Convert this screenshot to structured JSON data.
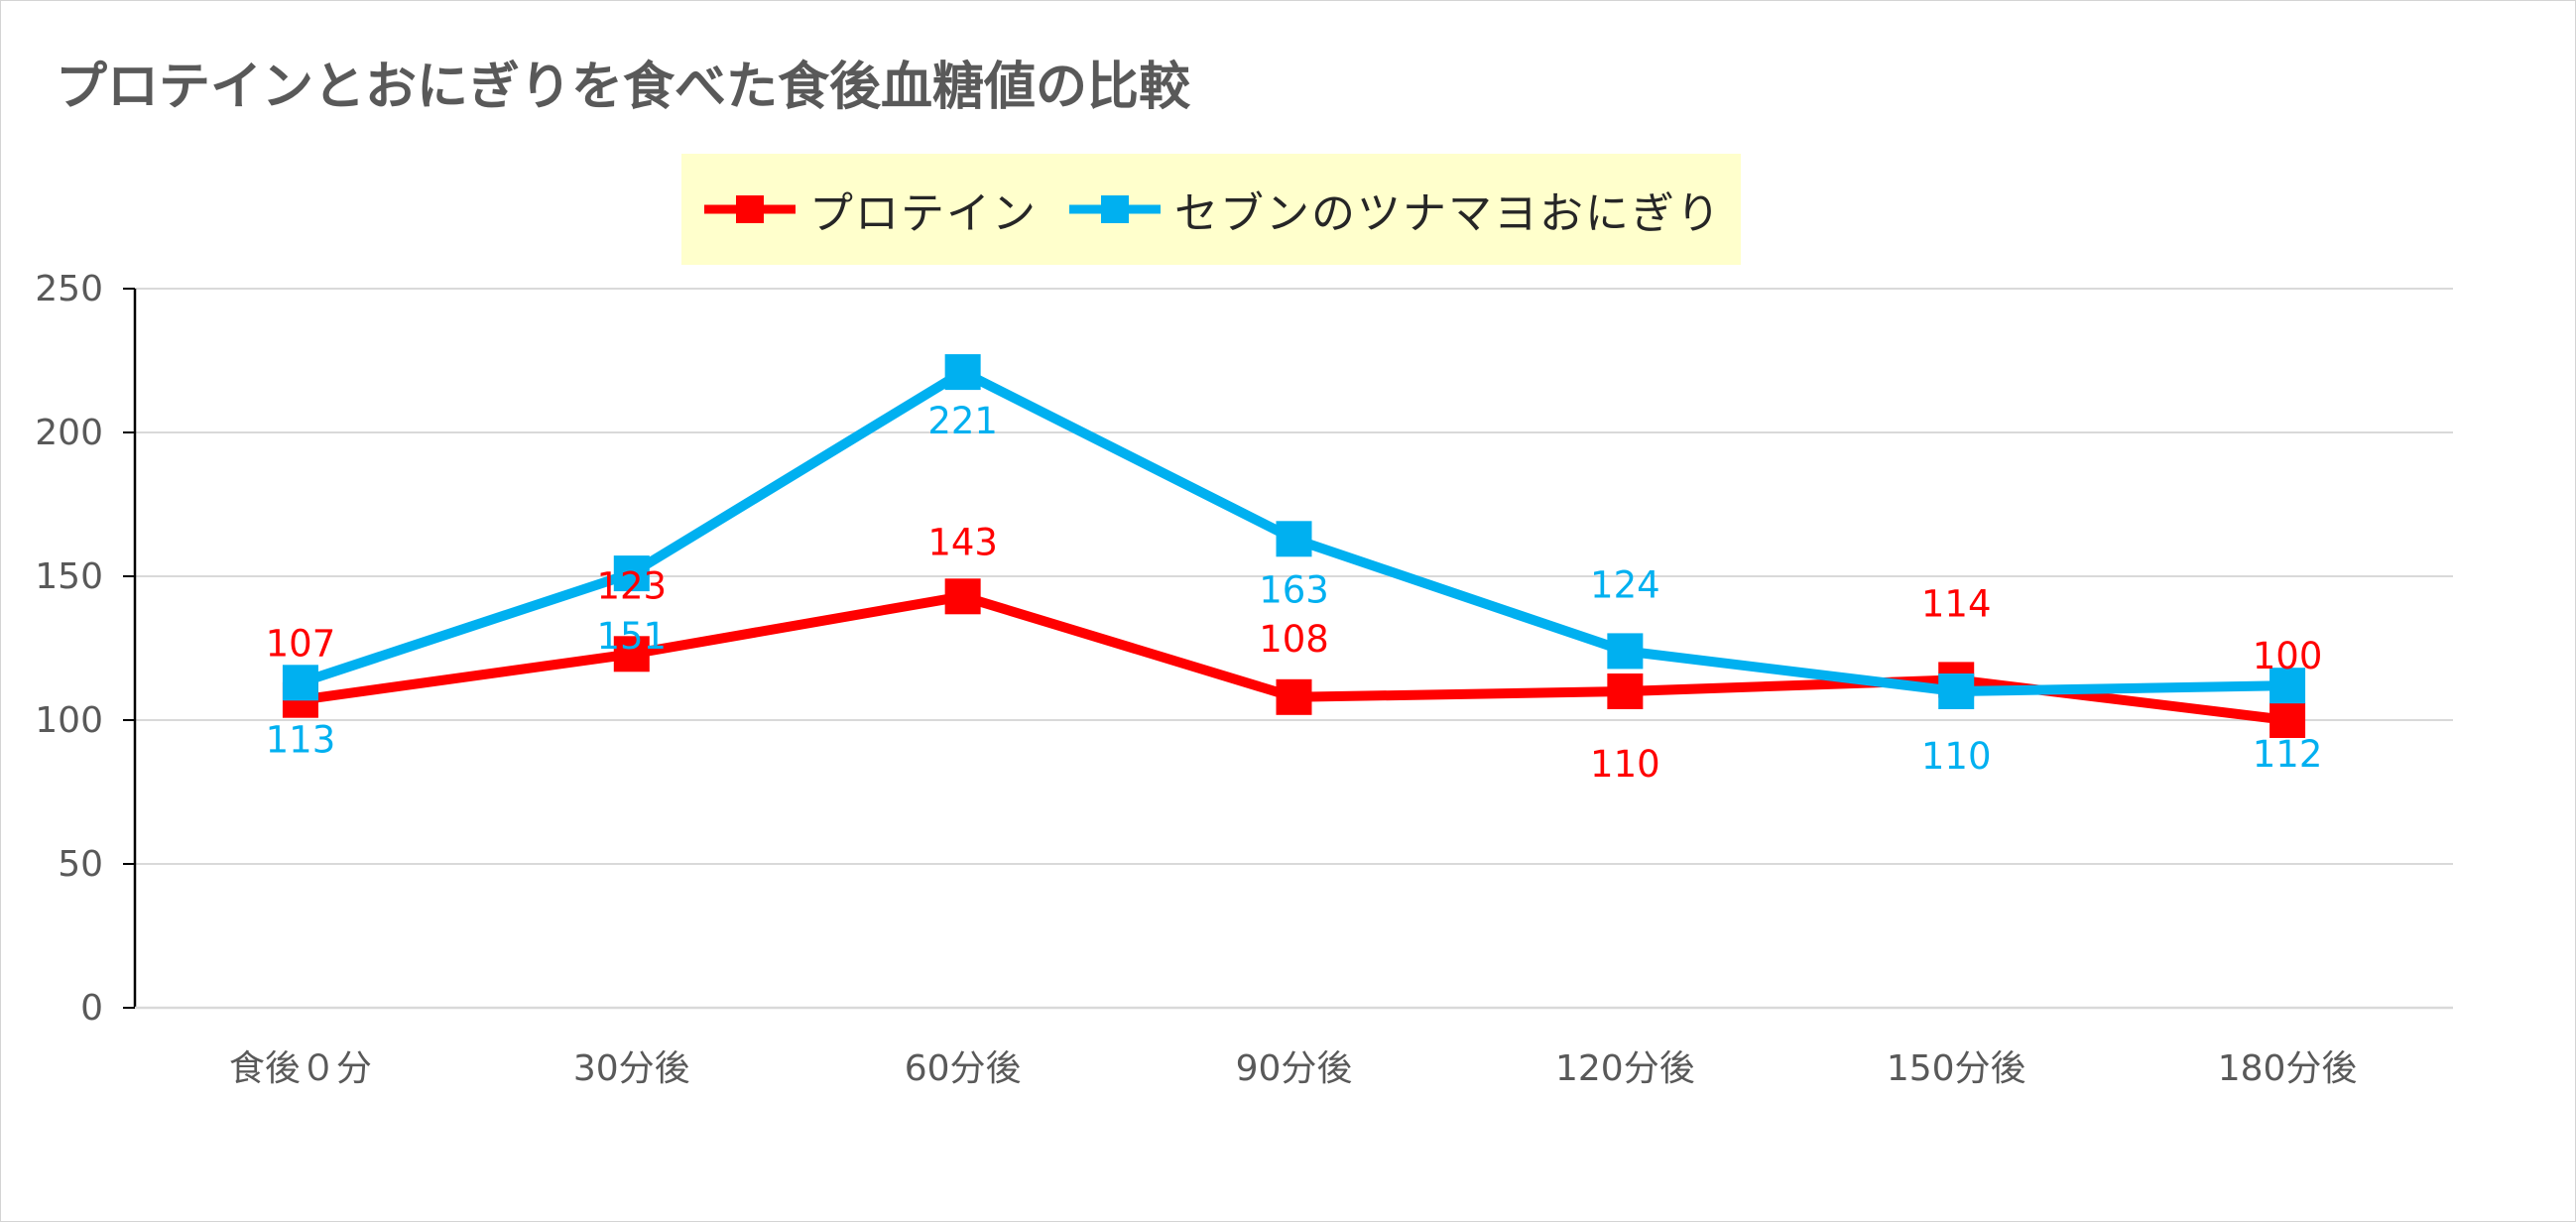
{
  "chart_data": {
    "type": "line",
    "title": "プロテインとおにぎりを食べた食後血糖値の比較",
    "categories": [
      "食後０分",
      "30分後",
      "60分後",
      "90分後",
      "120分後",
      "150分後",
      "180分後"
    ],
    "series": [
      {
        "name": "プロテイン",
        "color": "#ff0000",
        "values": [
          107,
          123,
          143,
          108,
          110,
          114,
          100
        ]
      },
      {
        "name": "セブンのツナマヨおにぎり",
        "color": "#00b0f0",
        "values": [
          113,
          151,
          221,
          163,
          124,
          110,
          112
        ]
      }
    ],
    "yticks": [
      0,
      50,
      100,
      150,
      200,
      250
    ],
    "ylim": [
      0,
      250
    ],
    "grid": true,
    "legend": "top-center",
    "marker": "square"
  }
}
